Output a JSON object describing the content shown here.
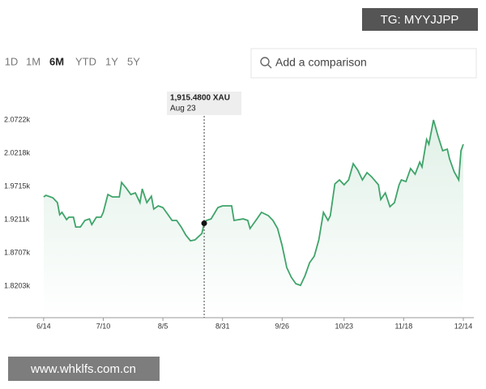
{
  "toolbar": {
    "ranges": [
      "1D",
      "1M",
      "6M",
      "YTD",
      "1Y",
      "5Y"
    ],
    "active": 2,
    "search_placeholder": "Add a comparison"
  },
  "watermarks": [
    "TG: MYYJJPP",
    "www.whklfs.com.cn"
  ],
  "chart_data": {
    "type": "line",
    "color": "#3fa46a",
    "x": [
      0,
      1,
      4,
      6,
      7,
      8,
      10,
      11,
      13,
      14,
      16,
      18,
      20,
      21,
      23,
      25,
      26,
      28,
      30,
      33,
      34,
      36,
      38,
      40,
      42,
      43,
      45,
      47,
      48,
      50,
      52,
      54,
      56,
      58,
      60,
      62,
      64,
      66,
      69,
      70,
      71,
      73,
      76,
      78,
      82,
      83,
      87,
      89,
      90,
      93,
      95,
      98,
      100,
      102,
      104,
      106,
      108,
      110,
      112,
      114,
      116,
      118,
      120,
      122,
      124,
      125,
      127,
      129,
      131,
      133,
      135,
      137,
      139,
      141,
      143,
      146,
      147,
      149,
      151,
      153,
      155,
      156,
      158,
      160,
      162,
      164,
      165,
      167,
      168,
      170,
      172,
      174,
      176,
      177,
      179,
      181,
      182,
      183
    ],
    "values": [
      1955.4,
      1957.9,
      1954.2,
      1946.8,
      1928.4,
      1932.1,
      1921.0,
      1924.7,
      1924.7,
      1909.9,
      1909.9,
      1919.8,
      1922.2,
      1913.6,
      1924.7,
      1924.7,
      1932.1,
      1959.1,
      1955.4,
      1955.4,
      1977.5,
      1968.9,
      1959.1,
      1961.6,
      1946.8,
      1967.7,
      1946.8,
      1956.6,
      1937.0,
      1941.9,
      1939.4,
      1929.6,
      1919.8,
      1919.8,
      1909.9,
      1897.6,
      1889.0,
      1890.3,
      1900.1,
      1915.48,
      1919.8,
      1922.2,
      1939.4,
      1941.9,
      1941.9,
      1919.8,
      1922.2,
      1919.8,
      1907.5,
      1922.2,
      1932.1,
      1927.1,
      1919.8,
      1907.5,
      1881.7,
      1848.5,
      1833.7,
      1823.9,
      1821.4,
      1836.2,
      1855.9,
      1865.7,
      1890.3,
      1932.1,
      1919.8,
      1927.1,
      1975.1,
      1981.2,
      1973.9,
      1981.2,
      2005.8,
      1996.0,
      1981.2,
      1992.3,
      1986.1,
      1973.9,
      1951.7,
      1961.6,
      1940.7,
      1946.8,
      1973.9,
      1981.2,
      1978.8,
      1998.4,
      1989.8,
      2008.3,
      2000.9,
      2042.7,
      2035.3,
      2072.2,
      2047.6,
      2025.5,
      2027.9,
      2013.2,
      1993.5,
      1981.2,
      2025.5,
      2035.3
    ],
    "xlim": [
      -15.5,
      187.6
    ],
    "ylim": [
      1772.4,
      2082.0
    ],
    "yticks": [
      {
        "value": 2072.2,
        "label": "2.0722k"
      },
      {
        "value": 2021.8,
        "label": "2.0218k"
      },
      {
        "value": 1971.5,
        "label": "1.9715k"
      },
      {
        "value": 1921.1,
        "label": "1.9211k"
      },
      {
        "value": 1870.7,
        "label": "1.8707k"
      },
      {
        "value": 1820.3,
        "label": "1.8203k"
      }
    ],
    "xticks": [
      {
        "value": 0,
        "label": "6/14"
      },
      {
        "value": 26,
        "label": "7/10"
      },
      {
        "value": 52,
        "label": "8/5"
      },
      {
        "value": 78,
        "label": "8/31"
      },
      {
        "value": 104,
        "label": "9/26"
      },
      {
        "value": 131,
        "label": "10/23"
      },
      {
        "value": 157,
        "label": "11/18"
      },
      {
        "value": 183,
        "label": "12/14"
      }
    ],
    "grid": false,
    "tooltip": {
      "index": 39,
      "value_label": "1,915.4800 XAU",
      "date": "Aug 23"
    }
  }
}
